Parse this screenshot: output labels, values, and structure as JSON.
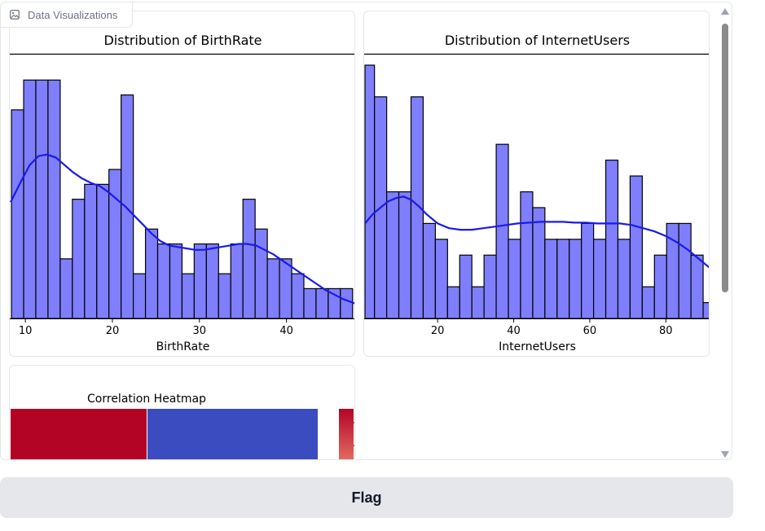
{
  "panel": {
    "label": "Data Visualizations",
    "label_icon": "image-icon"
  },
  "flag_button": {
    "label": "Flag"
  },
  "colors": {
    "bar_fill": "#7f7ffd",
    "bar_edge": "#000000",
    "kde_line": "#1a1aeb",
    "heatmap_red": "#b40426",
    "heatmap_blue": "#3b4cc0",
    "scrollbar_thumb": "#8b8b8b",
    "flag_bg": "#e5e7eb"
  },
  "chart_data": [
    {
      "type": "bar",
      "title": "Distribution of BirthRate",
      "xlabel": "BirthRate",
      "ylabel": "",
      "xticks": [
        "10",
        "20",
        "30",
        "40"
      ],
      "tick_values": [
        10,
        20,
        30,
        40
      ],
      "xlim": [
        8.3,
        47.9
      ],
      "ylim": [
        0,
        17
      ],
      "bins": [
        [
          8.4,
          9.8,
          14
        ],
        [
          9.8,
          11.2,
          16
        ],
        [
          11.2,
          12.6,
          16
        ],
        [
          12.6,
          14.0,
          16
        ],
        [
          14.0,
          15.4,
          4
        ],
        [
          15.4,
          16.8,
          8
        ],
        [
          16.8,
          18.2,
          9
        ],
        [
          18.2,
          19.6,
          9
        ],
        [
          19.6,
          21.0,
          10
        ],
        [
          21.0,
          22.4,
          15
        ],
        [
          22.4,
          23.8,
          3
        ],
        [
          23.8,
          25.2,
          6
        ],
        [
          25.2,
          26.6,
          5
        ],
        [
          26.6,
          28.0,
          5
        ],
        [
          28.0,
          29.4,
          3
        ],
        [
          29.4,
          30.8,
          5
        ],
        [
          30.8,
          32.2,
          5
        ],
        [
          32.2,
          33.6,
          3
        ],
        [
          33.6,
          35.0,
          5
        ],
        [
          35.0,
          36.4,
          8
        ],
        [
          36.4,
          37.8,
          6
        ],
        [
          37.8,
          39.2,
          4
        ],
        [
          39.2,
          40.6,
          4
        ],
        [
          40.6,
          42.0,
          3
        ],
        [
          42.0,
          43.4,
          2
        ],
        [
          43.4,
          44.8,
          2
        ],
        [
          44.8,
          46.2,
          2
        ],
        [
          46.2,
          47.6,
          2
        ]
      ],
      "kde": [
        [
          8.3,
          7.8
        ],
        [
          9.5,
          9.2
        ],
        [
          10.5,
          10.3
        ],
        [
          11.5,
          10.9
        ],
        [
          12.5,
          11.0
        ],
        [
          13.5,
          10.8
        ],
        [
          14.5,
          10.3
        ],
        [
          15.5,
          9.8
        ],
        [
          16.5,
          9.4
        ],
        [
          17.5,
          9.1
        ],
        [
          18.5,
          8.9
        ],
        [
          19.5,
          8.5
        ],
        [
          20.5,
          8.0
        ],
        [
          21.5,
          7.5
        ],
        [
          22.5,
          6.9
        ],
        [
          23.5,
          6.3
        ],
        [
          24.5,
          5.7
        ],
        [
          25.5,
          5.2
        ],
        [
          26.5,
          4.9
        ],
        [
          27.5,
          4.8
        ],
        [
          28.5,
          4.7
        ],
        [
          29.5,
          4.6
        ],
        [
          30.5,
          4.6
        ],
        [
          31.5,
          4.7
        ],
        [
          32.5,
          4.8
        ],
        [
          33.5,
          4.9
        ],
        [
          34.5,
          5.0
        ],
        [
          35.5,
          5.0
        ],
        [
          36.5,
          4.9
        ],
        [
          37.5,
          4.6
        ],
        [
          38.5,
          4.3
        ],
        [
          39.5,
          3.9
        ],
        [
          40.5,
          3.5
        ],
        [
          41.5,
          3.1
        ],
        [
          42.5,
          2.7
        ],
        [
          43.5,
          2.3
        ],
        [
          44.5,
          1.9
        ],
        [
          45.5,
          1.6
        ],
        [
          46.5,
          1.3
        ],
        [
          47.9,
          1.0
        ]
      ]
    },
    {
      "type": "bar",
      "title": "Distribution of InternetUsers",
      "xlabel": "InternetUsers",
      "ylabel": "",
      "xticks": [
        "20",
        "40",
        "60",
        "80"
      ],
      "tick_values": [
        20,
        40,
        60,
        80
      ],
      "xlim": [
        0.9,
        91.5
      ],
      "ylim": [
        0,
        16
      ],
      "bins": [
        [
          0.9,
          3.4,
          16
        ],
        [
          3.4,
          6.6,
          14
        ],
        [
          6.6,
          9.8,
          8
        ],
        [
          9.8,
          13.0,
          8
        ],
        [
          13.0,
          16.2,
          14
        ],
        [
          16.2,
          19.4,
          6
        ],
        [
          19.4,
          22.6,
          5
        ],
        [
          22.6,
          25.8,
          2
        ],
        [
          25.8,
          29.0,
          4
        ],
        [
          29.0,
          32.2,
          2
        ],
        [
          32.2,
          35.4,
          4
        ],
        [
          35.4,
          38.6,
          11
        ],
        [
          38.6,
          41.8,
          5
        ],
        [
          41.8,
          45.0,
          8
        ],
        [
          45.0,
          48.2,
          7
        ],
        [
          48.2,
          51.4,
          5
        ],
        [
          51.4,
          54.6,
          5
        ],
        [
          54.6,
          57.8,
          5
        ],
        [
          57.8,
          61.0,
          6
        ],
        [
          61.0,
          64.2,
          5
        ],
        [
          64.2,
          67.4,
          10
        ],
        [
          67.4,
          70.6,
          5
        ],
        [
          70.6,
          73.8,
          9
        ],
        [
          73.8,
          77.0,
          2
        ],
        [
          77.0,
          80.2,
          4
        ],
        [
          80.2,
          83.4,
          6
        ],
        [
          83.4,
          86.6,
          6
        ],
        [
          86.6,
          89.8,
          4
        ],
        [
          89.8,
          91.5,
          1
        ]
      ],
      "kde": [
        [
          0.9,
          6.0
        ],
        [
          3.0,
          6.6
        ],
        [
          5.0,
          7.0
        ],
        [
          7.0,
          7.4
        ],
        [
          9.0,
          7.6
        ],
        [
          11.0,
          7.7
        ],
        [
          13.0,
          7.5
        ],
        [
          15.0,
          7.1
        ],
        [
          17.0,
          6.6
        ],
        [
          20.0,
          6.0
        ],
        [
          23.0,
          5.7
        ],
        [
          26.0,
          5.6
        ],
        [
          29.0,
          5.6
        ],
        [
          32.0,
          5.7
        ],
        [
          35.0,
          5.8
        ],
        [
          38.0,
          5.9
        ],
        [
          41.0,
          6.0
        ],
        [
          44.0,
          6.05
        ],
        [
          47.0,
          6.1
        ],
        [
          50.0,
          6.1
        ],
        [
          53.0,
          6.1
        ],
        [
          56.0,
          6.05
        ],
        [
          59.0,
          6.05
        ],
        [
          62.0,
          6.0
        ],
        [
          65.0,
          6.0
        ],
        [
          68.0,
          6.0
        ],
        [
          71.0,
          5.9
        ],
        [
          74.0,
          5.7
        ],
        [
          77.0,
          5.5
        ],
        [
          80.0,
          5.2
        ],
        [
          83.0,
          4.8
        ],
        [
          86.0,
          4.3
        ],
        [
          89.0,
          3.7
        ],
        [
          91.5,
          3.2
        ]
      ]
    },
    {
      "type": "heatmap",
      "title": "Correlation Heatmap",
      "cells_visible": [
        "#b40426",
        "#3b4cc0"
      ],
      "colorbar": [
        "#b40426",
        "#f4987a"
      ]
    }
  ]
}
